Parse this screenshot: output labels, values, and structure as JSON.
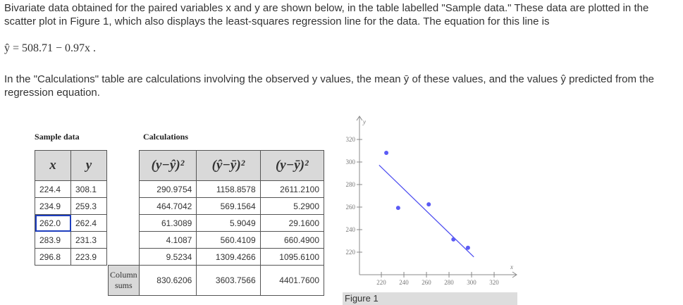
{
  "intro": {
    "p1": "Bivariate data obtained for the paired variables x and y are shown below, in the table labelled \"Sample data.\" These data are plotted in the scatter plot in Figure 1, which also displays the least-squares regression line for the data. The equation for this line is",
    "equation": "ŷ = 508.71 − 0.97x .",
    "p2": "In the \"Calculations\" table are calculations involving the observed y values, the mean ȳ of these values, and the values ŷ predicted from the regression equation."
  },
  "sample": {
    "caption": "Sample data",
    "headers": [
      "x",
      "y"
    ],
    "rows": [
      [
        "224.4",
        "308.1"
      ],
      [
        "234.9",
        "259.3"
      ],
      [
        "262.0",
        "262.4"
      ],
      [
        "283.9",
        "231.3"
      ],
      [
        "296.8",
        "223.9"
      ]
    ]
  },
  "calc": {
    "caption": "Calculations",
    "headers": [
      "(y−ŷ)²",
      "(ŷ−ȳ)²",
      "(y−ȳ)²"
    ],
    "rows": [
      [
        "290.9754",
        "1158.8578",
        "2611.2100"
      ],
      [
        "464.7042",
        "569.1564",
        "5.2900"
      ],
      [
        "61.3089",
        "5.9049",
        "29.1600"
      ],
      [
        "4.1087",
        "560.4109",
        "660.4900"
      ],
      [
        "9.5234",
        "1309.4266",
        "1095.6100"
      ]
    ],
    "sums_label": "Column sums",
    "sums": [
      "830.6206",
      "3603.7566",
      "4401.7600"
    ]
  },
  "chart_data": {
    "type": "scatter",
    "xlabel": "x",
    "ylabel": "y",
    "x_ticks": [
      220,
      240,
      260,
      280,
      300,
      320
    ],
    "y_ticks": [
      220,
      240,
      260,
      280,
      300,
      320
    ],
    "points": [
      [
        224.4,
        308.1
      ],
      [
        234.9,
        259.3
      ],
      [
        262.0,
        262.4
      ],
      [
        283.9,
        231.3
      ],
      [
        296.8,
        223.9
      ]
    ],
    "regression": {
      "intercept": 508.71,
      "slope": -0.97,
      "x_range": [
        218,
        302
      ]
    },
    "point_color": "#5b5bf5",
    "line_color": "#4a4af0"
  },
  "figure_caption": "Figure 1"
}
